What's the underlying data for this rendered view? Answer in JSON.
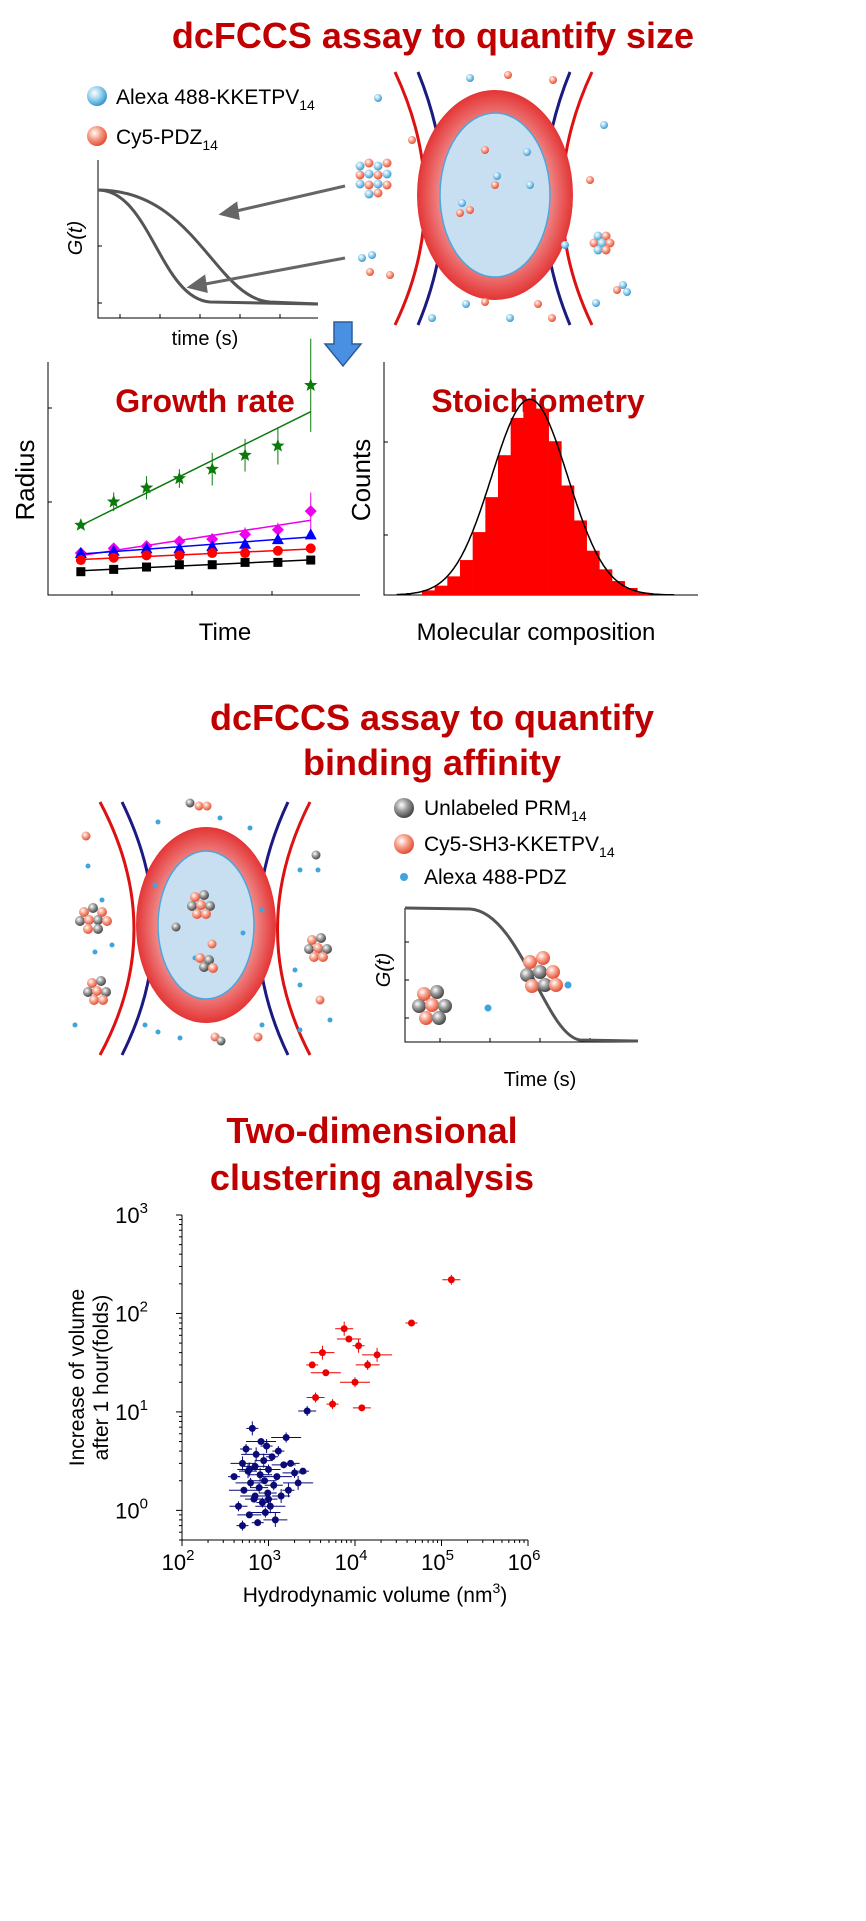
{
  "colors": {
    "title_red": "#c00000",
    "curve_gray": "#555555",
    "focal_red": "#e02020",
    "focal_blue": "#c8dff2",
    "beam_red": "#dd1111",
    "beam_navy": "#1a1a80",
    "alexa_blue": "#3ea6dc",
    "cy5_red": "#f26b50",
    "unlabeled_gray": "#7a7a7a",
    "bar_red": "#ff0000",
    "cluster_navy": "#0a0a78",
    "cluster_red": "#ee0000",
    "arrow_blue": "#4a90e2"
  },
  "section1": {
    "title": "dcFCCS assay to quantify size",
    "legend": [
      {
        "label": "Alexa 488-KKETPV",
        "sub": "14",
        "icon": "blue-sphere-icon"
      },
      {
        "label": "Cy5-PDZ",
        "sub": "14",
        "icon": "red-sphere-icon"
      }
    ],
    "g_axis_label": "G(t)",
    "time_axis_label": "time (s)"
  },
  "growth": {
    "title": "Growth rate",
    "ylabel": "Radius",
    "xlabel": "Time"
  },
  "stoich": {
    "title": "Stoichiometry",
    "ylabel": "Counts",
    "xlabel": "Molecular composition"
  },
  "section2": {
    "title_line1": "dcFCCS assay to quantify",
    "title_line2": "binding affinity",
    "legend": [
      {
        "label": "Unlabeled PRM",
        "sub": "14",
        "icon": "gray-sphere-icon"
      },
      {
        "label": "Cy5-SH3-KKETPV",
        "sub": "14",
        "icon": "red-sphere-icon"
      },
      {
        "label": "Alexa 488-PDZ",
        "sub": "",
        "icon": "blue-dot-icon"
      }
    ],
    "g_axis_label": "G(t)",
    "time_axis_label": "Time (s)"
  },
  "section3": {
    "title_line1": "Two-dimensional",
    "title_line2": "clustering analysis"
  },
  "chart_data": [
    {
      "type": "line",
      "chart": "growth-rate",
      "title": "Growth rate",
      "xlabel": "Time",
      "ylabel": "Radius",
      "x": [
        1,
        2,
        3,
        4,
        5,
        6,
        7,
        8
      ],
      "series": [
        {
          "marker": "star",
          "color": "#0a7a0a",
          "values": [
            1.5,
            2.0,
            2.3,
            2.5,
            2.7,
            3.0,
            3.2,
            4.5
          ],
          "err": [
            0.05,
            0.2,
            0.25,
            0.2,
            0.35,
            0.35,
            0.4,
            1.0
          ]
        },
        {
          "marker": "diamond",
          "color": "#ee00ee",
          "values": [
            0.9,
            1.0,
            1.05,
            1.15,
            1.2,
            1.3,
            1.4,
            1.8
          ],
          "err": [
            0.05,
            0.08,
            0.1,
            0.12,
            0.12,
            0.15,
            0.15,
            0.4
          ]
        },
        {
          "marker": "triangle",
          "color": "#0000ff",
          "values": [
            0.9,
            0.95,
            1.0,
            1.0,
            1.05,
            1.1,
            1.2,
            1.3
          ],
          "err": [
            0.05,
            0.05,
            0.05,
            0.05,
            0.05,
            0.06,
            0.06,
            0.08
          ]
        },
        {
          "marker": "circle",
          "color": "#ff0000",
          "values": [
            0.75,
            0.8,
            0.85,
            0.85,
            0.9,
            0.9,
            0.95,
            1.0
          ],
          "err": [
            0.03,
            0.03,
            0.03,
            0.03,
            0.03,
            0.03,
            0.03,
            0.04
          ]
        },
        {
          "marker": "square",
          "color": "#000000",
          "values": [
            0.5,
            0.55,
            0.6,
            0.65,
            0.65,
            0.7,
            0.7,
            0.75
          ],
          "err": [
            0.02,
            0.02,
            0.02,
            0.02,
            0.02,
            0.02,
            0.02,
            0.02
          ]
        }
      ],
      "ylim": [
        0,
        5
      ],
      "xlim": [
        0,
        9.5
      ]
    },
    {
      "type": "bar",
      "chart": "stoichiometry",
      "title": "Stoichiometry",
      "xlabel": "Molecular composition",
      "ylabel": "Counts",
      "values": [
        2,
        4,
        8,
        15,
        27,
        42,
        60,
        76,
        84,
        80,
        66,
        47,
        32,
        19,
        11,
        6,
        3,
        1
      ],
      "fit": "gaussian",
      "ylim": [
        0,
        100
      ]
    },
    {
      "type": "scatter",
      "chart": "clustering",
      "xlabel": "Hydrodynamic volume (nm3)",
      "ylabel": "Increase of volume after 1 hour(folds)",
      "xscale": "log",
      "yscale": "log",
      "xlim": [
        100,
        1000000
      ],
      "ylim": [
        0.5,
        1000
      ],
      "xticks": [
        "10",
        "10",
        "10",
        "10",
        "10"
      ],
      "xtick_exp": [
        "2",
        "3",
        "4",
        "5",
        "6"
      ],
      "yticks": [
        "10",
        "10",
        "10",
        "10"
      ],
      "ytick_exp": [
        "0",
        "1",
        "2",
        "3"
      ],
      "series": [
        {
          "cluster": "blue",
          "points": [
            [
              400,
              2.2
            ],
            [
              450,
              1.1
            ],
            [
              500,
              3.0
            ],
            [
              520,
              1.6
            ],
            [
              550,
              4.2
            ],
            [
              580,
              2.5
            ],
            [
              600,
              0.9
            ],
            [
              620,
              1.9
            ],
            [
              650,
              6.8
            ],
            [
              680,
              1.3
            ],
            [
              700,
              2.8
            ],
            [
              720,
              3.7
            ],
            [
              750,
              0.75
            ],
            [
              780,
              1.7
            ],
            [
              800,
              2.3
            ],
            [
              820,
              5.0
            ],
            [
              850,
              1.2
            ],
            [
              880,
              3.2
            ],
            [
              900,
              2.0
            ],
            [
              920,
              0.95
            ],
            [
              950,
              4.5
            ],
            [
              980,
              1.5
            ],
            [
              1000,
              2.6
            ],
            [
              1050,
              1.1
            ],
            [
              1100,
              3.5
            ],
            [
              1150,
              1.8
            ],
            [
              1200,
              0.8
            ],
            [
              1250,
              2.2
            ],
            [
              1300,
              4.0
            ],
            [
              1400,
              1.4
            ],
            [
              1500,
              2.9
            ],
            [
              1600,
              5.5
            ],
            [
              1700,
              1.6
            ],
            [
              1800,
              3.0
            ],
            [
              2000,
              2.4
            ],
            [
              2200,
              1.9
            ],
            [
              2500,
              2.5
            ],
            [
              2800,
              10.2
            ],
            [
              600,
              2.6
            ],
            [
              700,
              1.4
            ],
            [
              500,
              0.7
            ],
            [
              1000,
              1.3
            ]
          ]
        },
        {
          "cluster": "red",
          "points": [
            [
              3200,
              30
            ],
            [
              3500,
              14
            ],
            [
              4200,
              40
            ],
            [
              4600,
              25
            ],
            [
              5500,
              12
            ],
            [
              7500,
              70
            ],
            [
              8500,
              55
            ],
            [
              10000,
              20
            ],
            [
              11000,
              47
            ],
            [
              12000,
              11
            ],
            [
              14000,
              30
            ],
            [
              18000,
              38
            ],
            [
              45000,
              80
            ],
            [
              130000,
              220
            ]
          ]
        }
      ]
    }
  ]
}
